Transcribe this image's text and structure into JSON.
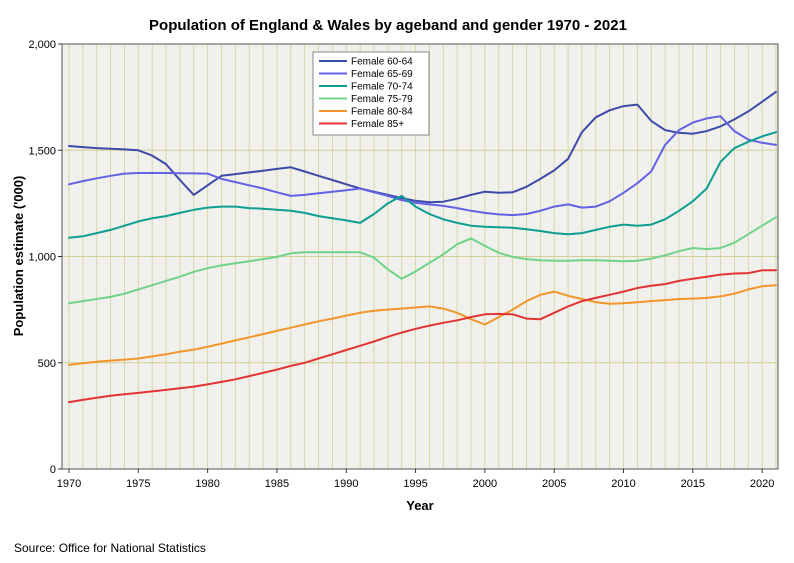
{
  "chart_data": {
    "type": "line",
    "title": "Population of England & Wales by ageband and gender 1970 - 2021",
    "xlabel": "Year",
    "ylabel": "Population estimate ('000)",
    "xlim": [
      1970,
      2021
    ],
    "ylim": [
      0,
      2000
    ],
    "x_ticks": [
      1970,
      1975,
      1980,
      1985,
      1990,
      1995,
      2000,
      2005,
      2010,
      2015,
      2020
    ],
    "y_ticks": [
      0,
      500,
      1000,
      1500,
      2000
    ],
    "y_tick_labels": [
      "0",
      "500",
      "1,000",
      "1,500",
      "2,000"
    ],
    "grid": true,
    "legend_position": "top-center",
    "x": [
      1970,
      1971,
      1972,
      1973,
      1974,
      1975,
      1976,
      1977,
      1978,
      1979,
      1980,
      1981,
      1982,
      1983,
      1984,
      1985,
      1986,
      1987,
      1988,
      1989,
      1990,
      1991,
      1992,
      1993,
      1994,
      1995,
      1996,
      1997,
      1998,
      1999,
      2000,
      2001,
      2002,
      2003,
      2004,
      2005,
      2006,
      2007,
      2008,
      2009,
      2010,
      2011,
      2012,
      2013,
      2014,
      2015,
      2016,
      2017,
      2018,
      2019,
      2020,
      2021
    ],
    "series": [
      {
        "name": "Female 60-64",
        "color": "#3d4ba8",
        "values": [
          1520,
          1515,
          1510,
          1507,
          1504,
          1500,
          1475,
          1435,
          1360,
          1290,
          1335,
          1380,
          1388,
          1396,
          1404,
          1412,
          1420,
          1400,
          1380,
          1360,
          1340,
          1320,
          1305,
          1290,
          1275,
          1262,
          1255,
          1258,
          1272,
          1290,
          1305,
          1300,
          1302,
          1328,
          1365,
          1405,
          1460,
          1585,
          1655,
          1688,
          1708,
          1715,
          1638,
          1595,
          1582,
          1578,
          1590,
          1612,
          1645,
          1683,
          1728,
          1775
        ]
      },
      {
        "name": "Female 65-69",
        "color": "#6262e6",
        "values": [
          1340,
          1355,
          1368,
          1380,
          1390,
          1393,
          1393,
          1393,
          1392,
          1391,
          1390,
          1365,
          1350,
          1335,
          1320,
          1302,
          1285,
          1290,
          1298,
          1305,
          1312,
          1320,
          1302,
          1285,
          1265,
          1252,
          1245,
          1238,
          1228,
          1215,
          1205,
          1198,
          1195,
          1200,
          1215,
          1235,
          1245,
          1230,
          1235,
          1260,
          1300,
          1345,
          1400,
          1525,
          1595,
          1630,
          1650,
          1660,
          1590,
          1550,
          1535,
          1525
        ]
      },
      {
        "name": "Female 70-74",
        "color": "#0d9e92",
        "values": [
          1088,
          1095,
          1110,
          1125,
          1145,
          1165,
          1180,
          1190,
          1205,
          1220,
          1230,
          1235,
          1235,
          1228,
          1225,
          1220,
          1215,
          1205,
          1190,
          1180,
          1170,
          1158,
          1200,
          1250,
          1285,
          1235,
          1200,
          1175,
          1158,
          1145,
          1140,
          1138,
          1135,
          1128,
          1120,
          1110,
          1105,
          1110,
          1125,
          1140,
          1150,
          1145,
          1150,
          1175,
          1215,
          1260,
          1320,
          1445,
          1510,
          1540,
          1565,
          1585
        ]
      },
      {
        "name": "Female 75-79",
        "color": "#6fd389",
        "values": [
          780,
          790,
          800,
          810,
          825,
          845,
          865,
          885,
          905,
          928,
          945,
          958,
          968,
          978,
          988,
          998,
          1015,
          1020,
          1020,
          1020,
          1020,
          1020,
          995,
          940,
          895,
          930,
          970,
          1010,
          1058,
          1085,
          1050,
          1018,
          998,
          988,
          982,
          980,
          980,
          982,
          982,
          980,
          978,
          980,
          990,
          1005,
          1025,
          1040,
          1035,
          1040,
          1065,
          1105,
          1145,
          1185
        ]
      },
      {
        "name": "Female 80-84",
        "color": "#f2962b",
        "values": [
          490,
          498,
          505,
          510,
          515,
          520,
          530,
          540,
          552,
          562,
          575,
          590,
          605,
          620,
          635,
          650,
          665,
          680,
          695,
          708,
          722,
          735,
          745,
          750,
          755,
          760,
          765,
          755,
          735,
          705,
          680,
          715,
          750,
          790,
          820,
          835,
          815,
          800,
          785,
          778,
          780,
          785,
          790,
          795,
          800,
          802,
          805,
          812,
          825,
          845,
          860,
          865
        ]
      },
      {
        "name": "Female 85+",
        "color": "#e33434",
        "values": [
          315,
          325,
          335,
          345,
          352,
          358,
          365,
          372,
          380,
          388,
          398,
          410,
          422,
          437,
          452,
          468,
          485,
          500,
          520,
          540,
          560,
          580,
          600,
          622,
          642,
          660,
          675,
          688,
          700,
          715,
          728,
          730,
          728,
          708,
          705,
          735,
          765,
          790,
          805,
          820,
          835,
          852,
          862,
          870,
          885,
          895,
          905,
          915,
          920,
          922,
          935,
          935
        ]
      }
    ]
  },
  "footer": {
    "source": "Source: Office for National Statistics"
  }
}
